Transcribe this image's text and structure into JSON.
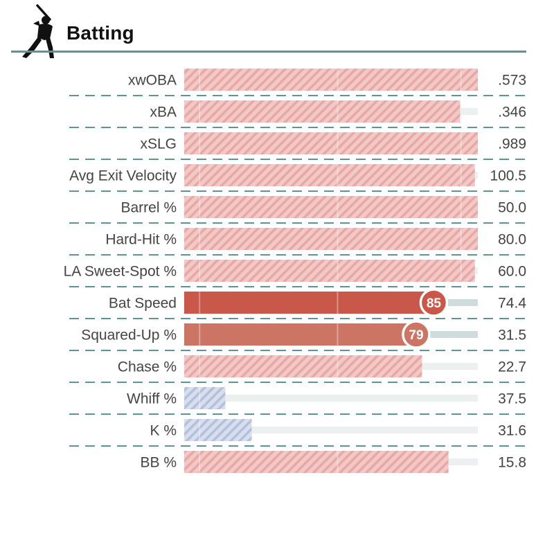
{
  "header": {
    "title": "Batting",
    "icon": "batter-silhouette-icon",
    "rule_color": "#5b9499"
  },
  "chart_data": {
    "type": "bar",
    "orientation": "horizontal",
    "title": "Batting",
    "xlim": [
      0,
      100
    ],
    "grid": false,
    "legend": "none",
    "colors": {
      "hatched_high": "#e9a8a6",
      "hatched_low": "#b4c1dc",
      "solid_high": "#c9584a",
      "solid_mid": "#cd7565",
      "track": "#edf0f0",
      "track_highlight": "#cfdcdc",
      "separator": "#5b9499"
    },
    "rows": [
      {
        "label": "xwOBA",
        "value": ".573",
        "percentile": 100,
        "style": "hatched"
      },
      {
        "label": "xBA",
        "value": ".346",
        "percentile": 94,
        "style": "hatched"
      },
      {
        "label": "xSLG",
        "value": ".989",
        "percentile": 100,
        "style": "hatched"
      },
      {
        "label": "Avg Exit Velocity",
        "value": "100.5",
        "percentile": 99,
        "style": "hatched"
      },
      {
        "label": "Barrel %",
        "value": "50.0",
        "percentile": 100,
        "style": "hatched"
      },
      {
        "label": "Hard-Hit %",
        "value": "80.0",
        "percentile": 100,
        "style": "hatched"
      },
      {
        "label": "LA Sweet-Spot %",
        "value": "60.0",
        "percentile": 99,
        "style": "hatched"
      },
      {
        "label": "Bat Speed",
        "value": "74.4",
        "percentile": 85,
        "style": "solid",
        "badge": "85"
      },
      {
        "label": "Squared-Up %",
        "value": "31.5",
        "percentile": 79,
        "style": "solid",
        "badge": "79"
      },
      {
        "label": "Chase %",
        "value": "22.7",
        "percentile": 81,
        "style": "hatched"
      },
      {
        "label": "Whiff %",
        "value": "37.5",
        "percentile": 14,
        "style": "hatched"
      },
      {
        "label": "K %",
        "value": "31.6",
        "percentile": 23,
        "style": "hatched"
      },
      {
        "label": "BB %",
        "value": "15.8",
        "percentile": 90,
        "style": "hatched"
      }
    ]
  }
}
